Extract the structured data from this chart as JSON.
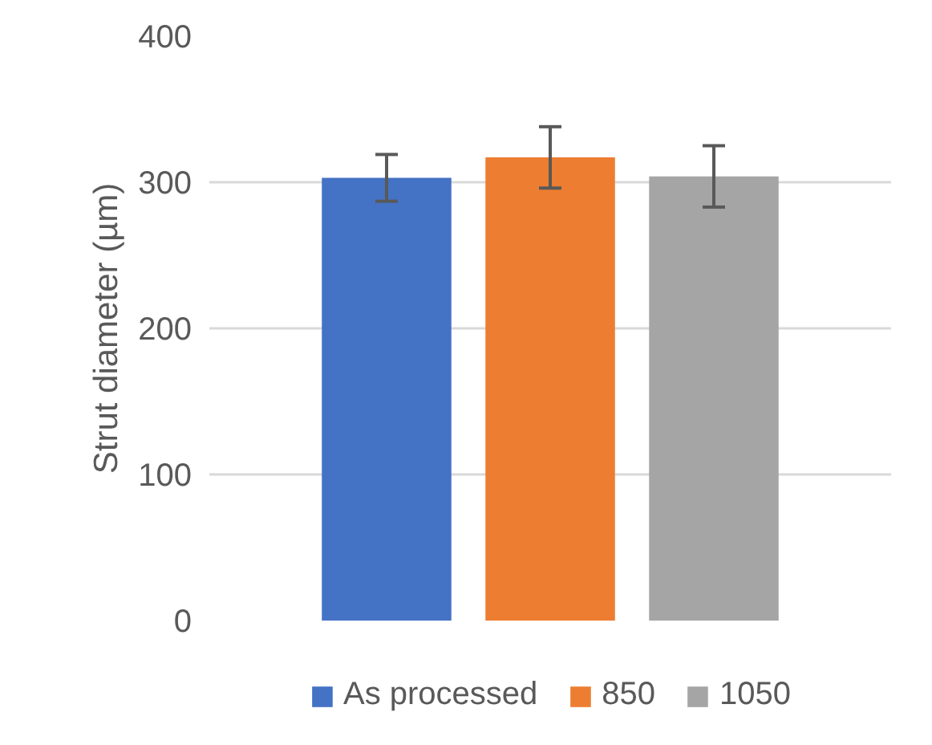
{
  "chart_data": {
    "type": "bar",
    "ylabel": "Strut diameter (µm)",
    "categories": [
      null
    ],
    "series": [
      {
        "name": "As processed",
        "color": "#4472c4",
        "values": [
          303
        ],
        "errors": [
          16
        ]
      },
      {
        "name": "850",
        "color": "#ed7d31",
        "values": [
          317
        ],
        "errors": [
          21
        ]
      },
      {
        "name": "1050",
        "color": "#a5a5a5",
        "values": [
          304
        ],
        "errors": [
          21
        ]
      }
    ],
    "ylim": [
      0,
      400
    ],
    "yticks": [
      0,
      100,
      200,
      300,
      400
    ],
    "grid": "y",
    "legend": "bottom"
  }
}
